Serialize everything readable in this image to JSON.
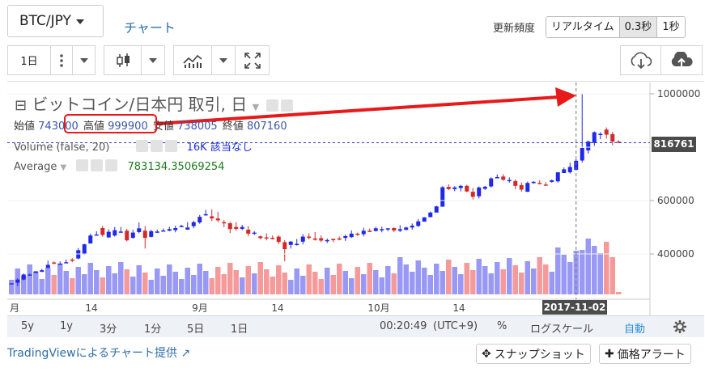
{
  "header": {
    "pair": "BTC/JPY",
    "chart_link": "チャート",
    "freq_label": "更新頻度",
    "freq_options": [
      "リアルタイム",
      "0.3秒",
      "1秒"
    ],
    "freq_selected": "0.3秒"
  },
  "toolbar": {
    "interval": "1日",
    "upload_icon": "cloud-upload-icon",
    "download_icon": "cloud-download-icon"
  },
  "legend": {
    "title": "ビットコイン/日本円 取引, 日",
    "open_label": "始値",
    "open": "743000",
    "high_label": "高値",
    "high": "999900",
    "low_label": "安値",
    "low": "738005",
    "close_label": "終値",
    "close": "807160",
    "volume_label": "Volume (false, 20)",
    "volume_value": "16K",
    "volume_na": "該当なし",
    "avg_label": "Average",
    "avg_value": "783134.35069254"
  },
  "price_axis": {
    "ticks": [
      "1000000",
      "600000",
      "400000"
    ],
    "current": "816761"
  },
  "time_axis": {
    "ticks": [
      "月",
      "14",
      "9月",
      "14",
      "10月",
      "14"
    ],
    "crosshair_date": "2017-11-02"
  },
  "bottom_bar": {
    "ranges": [
      "5y",
      "1y",
      "3分",
      "1分",
      "5日",
      "1日"
    ],
    "time": "00:20:49",
    "tz": "(UTC+9)",
    "percent": "%",
    "log": "ログスケール",
    "auto": "自動"
  },
  "footer": {
    "credit": "TradingViewによるチャート提供",
    "snapshot": "スナップショット",
    "alert": "価格アラート"
  },
  "colors": {
    "up": "#2128e6",
    "down": "#d22a2a",
    "vol_up": "#9999f5",
    "vol_down": "#f59a9a",
    "arrow": "#e81919"
  },
  "chart_data": {
    "type": "candlestick",
    "y_ticks": [
      1000000,
      600000,
      400000
    ],
    "candles": [
      [
        289,
        290,
        290,
        290
      ],
      [
        292,
        304,
        309,
        279
      ],
      [
        304,
        323,
        327,
        301
      ],
      [
        323,
        323,
        326,
        320
      ],
      [
        329,
        335,
        335,
        328
      ],
      [
        333,
        339,
        344,
        332
      ],
      [
        348,
        359,
        375,
        346
      ],
      [
        368,
        364,
        372,
        361
      ],
      [
        364,
        364,
        372,
        364
      ],
      [
        367,
        369,
        379,
        366
      ],
      [
        379,
        375,
        384,
        369
      ],
      [
        383,
        414,
        422,
        380
      ],
      [
        399,
        436,
        438,
        397
      ],
      [
        439,
        469,
        476,
        439
      ],
      [
        473,
        473,
        485,
        473
      ],
      [
        497,
        471,
        505,
        465
      ],
      [
        462,
        483,
        492,
        460
      ],
      [
        469,
        489,
        501,
        465
      ],
      [
        484,
        484,
        501,
        482
      ],
      [
        487,
        451,
        494,
        447
      ],
      [
        460,
        480,
        490,
        458
      ],
      [
        482,
        496,
        518,
        477
      ],
      [
        487,
        460,
        504,
        420
      ],
      [
        464,
        485,
        491,
        462
      ],
      [
        483,
        484,
        491,
        479
      ],
      [
        484,
        488,
        495,
        484
      ],
      [
        487,
        493,
        502,
        485
      ],
      [
        489,
        497,
        506,
        481
      ],
      [
        505,
        505,
        509,
        500
      ],
      [
        491,
        499,
        519,
        496
      ],
      [
        504,
        519,
        524,
        496
      ],
      [
        518,
        539,
        546,
        513
      ],
      [
        547,
        549,
        565,
        543
      ],
      [
        541,
        533,
        567,
        523
      ],
      [
        533,
        526,
        558,
        519
      ],
      [
        519,
        516,
        527,
        500
      ],
      [
        515,
        493,
        520,
        478
      ],
      [
        501,
        494,
        519,
        487
      ],
      [
        494,
        501,
        509,
        489
      ],
      [
        491,
        476,
        504,
        466
      ],
      [
        476,
        480,
        486,
        471
      ],
      [
        466,
        459,
        469,
        455
      ],
      [
        462,
        459,
        477,
        451
      ],
      [
        460,
        459,
        469,
        454
      ],
      [
        465,
        445,
        469,
        437
      ],
      [
        444,
        418,
        451,
        372
      ],
      [
        434,
        446,
        449,
        420
      ],
      [
        436,
        438,
        456,
        431
      ],
      [
        446,
        465,
        474,
        436
      ],
      [
        465,
        463,
        477,
        454
      ],
      [
        458,
        453,
        482,
        450
      ],
      [
        459,
        450,
        469,
        444
      ],
      [
        452,
        452,
        458,
        441
      ],
      [
        456,
        454,
        458,
        444
      ],
      [
        458,
        454,
        465,
        451
      ],
      [
        460,
        467,
        472,
        449
      ],
      [
        463,
        476,
        488,
        460
      ],
      [
        476,
        475,
        480,
        468
      ],
      [
        474,
        487,
        498,
        466
      ],
      [
        487,
        484,
        495,
        482
      ],
      [
        486,
        496,
        501,
        484
      ],
      [
        492,
        493,
        502,
        481
      ],
      [
        494,
        496,
        497,
        485
      ],
      [
        497,
        488,
        500,
        482
      ],
      [
        487,
        493,
        508,
        482
      ],
      [
        490,
        499,
        502,
        490
      ],
      [
        499,
        506,
        514,
        491
      ],
      [
        505,
        522,
        531,
        501
      ],
      [
        521,
        537,
        538,
        521
      ],
      [
        538,
        555,
        559,
        537
      ],
      [
        555,
        578,
        581,
        556
      ],
      [
        577,
        650,
        654,
        578
      ],
      [
        651,
        643,
        661,
        639
      ],
      [
        643,
        649,
        654,
        635
      ],
      [
        647,
        655,
        659,
        634
      ],
      [
        655,
        634,
        659,
        631
      ],
      [
        633,
        614,
        647,
        604
      ],
      [
        616,
        649,
        653,
        608
      ],
      [
        644,
        652,
        655,
        640
      ],
      [
        653,
        683,
        687,
        648
      ],
      [
        684,
        688,
        698,
        683
      ],
      [
        690,
        678,
        699,
        674
      ],
      [
        674,
        677,
        687,
        667
      ],
      [
        673,
        655,
        679,
        643
      ],
      [
        658,
        641,
        668,
        633
      ],
      [
        633,
        666,
        671,
        632
      ],
      [
        666,
        670,
        673,
        663
      ],
      [
        666,
        662,
        676,
        662
      ],
      [
        660,
        659,
        669,
        659
      ],
      [
        670,
        676,
        679,
        667
      ],
      [
        672,
        706,
        706,
        667
      ],
      [
        703,
        717,
        724,
        704
      ],
      [
        706,
        726,
        742,
        701
      ],
      [
        715,
        749,
        755,
        713
      ],
      [
        750,
        797,
        999,
        743
      ],
      [
        788,
        821,
        825,
        776
      ],
      [
        816,
        856,
        859,
        805
      ],
      [
        850,
        850,
        856,
        830
      ],
      [
        866,
        847,
        874,
        832
      ],
      [
        849,
        821,
        857,
        807
      ],
      [
        821,
        817,
        826,
        815
      ]
    ],
    "crosshair_price": 816761,
    "crosshair_date": "2017-11-02"
  }
}
